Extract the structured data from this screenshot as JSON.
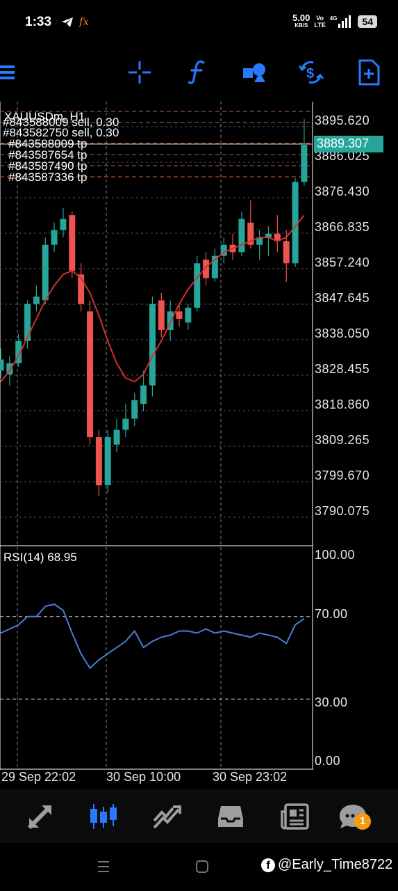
{
  "status_bar": {
    "time": "1:33",
    "speed_value": "5.00",
    "speed_unit": "KB/S",
    "volte_top": "Vo",
    "volte_bottom": "LTE",
    "network": "4G",
    "battery": "54"
  },
  "toolbar": {
    "items": [
      "menu",
      "crosshair",
      "indicators",
      "objects",
      "quick-trade",
      "new-order"
    ]
  },
  "chart": {
    "title": "XAUUSDm, H1",
    "current_price": "3889.307",
    "orders": [
      "#843588009 sell, 0.30",
      "#843582750 sell, 0.30",
      "#843588009 tp",
      "#843587654 tp",
      "#843587490 tp",
      "#843587336 tp"
    ],
    "price_labels": [
      "3895.620",
      "3886.025",
      "3876.430",
      "3866.835",
      "3857.240",
      "3847.645",
      "3838.050",
      "3828.455",
      "3818.860",
      "3809.265",
      "3799.670",
      "3790.075"
    ],
    "rsi": {
      "label": "RSI(14) 68.95",
      "levels": [
        "100.00",
        "70.00",
        "30.00",
        "0.00"
      ]
    },
    "time_labels": [
      "29 Sep 22:02",
      "30 Sep 10:00",
      "30 Sep 23:02"
    ]
  },
  "chart_data": {
    "type": "candlestick",
    "symbol": "XAUUSDm",
    "timeframe": "H1",
    "ylim": [
      3785,
      3900
    ],
    "candles": [
      {
        "o": 3828,
        "h": 3834,
        "l": 3826,
        "c": 3831
      },
      {
        "o": 3827,
        "h": 3832,
        "l": 3824,
        "c": 3830
      },
      {
        "o": 3830,
        "h": 3838,
        "l": 3829,
        "c": 3836
      },
      {
        "o": 3836,
        "h": 3847,
        "l": 3834,
        "c": 3846
      },
      {
        "o": 3846,
        "h": 3851,
        "l": 3844,
        "c": 3848
      },
      {
        "o": 3847,
        "h": 3864,
        "l": 3846,
        "c": 3862
      },
      {
        "o": 3862,
        "h": 3868,
        "l": 3860,
        "c": 3866
      },
      {
        "o": 3866,
        "h": 3872,
        "l": 3864,
        "c": 3869
      },
      {
        "o": 3870,
        "h": 3871,
        "l": 3853,
        "c": 3855
      },
      {
        "o": 3854,
        "h": 3857,
        "l": 3844,
        "c": 3846
      },
      {
        "o": 3844,
        "h": 3847,
        "l": 3808,
        "c": 3810
      },
      {
        "o": 3810,
        "h": 3812,
        "l": 3794,
        "c": 3797
      },
      {
        "o": 3797,
        "h": 3812,
        "l": 3795,
        "c": 3810
      },
      {
        "o": 3808,
        "h": 3815,
        "l": 3806,
        "c": 3812
      },
      {
        "o": 3812,
        "h": 3819,
        "l": 3810,
        "c": 3815
      },
      {
        "o": 3815,
        "h": 3822,
        "l": 3813,
        "c": 3820
      },
      {
        "o": 3819,
        "h": 3828,
        "l": 3817,
        "c": 3824
      },
      {
        "o": 3824,
        "h": 3848,
        "l": 3821,
        "c": 3846
      },
      {
        "o": 3847,
        "h": 3849,
        "l": 3837,
        "c": 3839
      },
      {
        "o": 3839,
        "h": 3847,
        "l": 3836,
        "c": 3844
      },
      {
        "o": 3844,
        "h": 3846,
        "l": 3840,
        "c": 3842
      },
      {
        "o": 3841,
        "h": 3846,
        "l": 3839,
        "c": 3845
      },
      {
        "o": 3845,
        "h": 3859,
        "l": 3844,
        "c": 3857
      },
      {
        "o": 3858,
        "h": 3860,
        "l": 3851,
        "c": 3853
      },
      {
        "o": 3853,
        "h": 3861,
        "l": 3852,
        "c": 3859
      },
      {
        "o": 3859,
        "h": 3864,
        "l": 3857,
        "c": 3862
      },
      {
        "o": 3862,
        "h": 3865,
        "l": 3858,
        "c": 3860
      },
      {
        "o": 3860,
        "h": 3871,
        "l": 3859,
        "c": 3869
      },
      {
        "o": 3868,
        "h": 3874,
        "l": 3861,
        "c": 3862
      },
      {
        "o": 3862,
        "h": 3866,
        "l": 3858,
        "c": 3864
      },
      {
        "o": 3864,
        "h": 3867,
        "l": 3859,
        "c": 3865
      },
      {
        "o": 3865,
        "h": 3870,
        "l": 3860,
        "c": 3863
      },
      {
        "o": 3863,
        "h": 3866,
        "l": 3852,
        "c": 3857
      },
      {
        "o": 3857,
        "h": 3880,
        "l": 3856,
        "c": 3879
      },
      {
        "o": 3879,
        "h": 3896,
        "l": 3878,
        "c": 3889
      }
    ],
    "ma": [
      3825,
      3828,
      3832,
      3837,
      3842,
      3847,
      3851,
      3854,
      3855,
      3853,
      3849,
      3843,
      3836,
      3830,
      3826,
      3825,
      3827,
      3832,
      3836,
      3841,
      3846,
      3850,
      3853,
      3856,
      3858,
      3860,
      3861,
      3862,
      3863,
      3864,
      3864,
      3863,
      3864,
      3867,
      3870
    ],
    "rsi_values": [
      62,
      64,
      66,
      70,
      70,
      75,
      76,
      73,
      62,
      52,
      45,
      49,
      52,
      55,
      58,
      63,
      55,
      58,
      60,
      61,
      63,
      63,
      62,
      64,
      62,
      63,
      62,
      61,
      60,
      62,
      61,
      60,
      57,
      66,
      69
    ],
    "rsi_levels": [
      0,
      30,
      70,
      100
    ],
    "colors": {
      "bull": "#26a69a",
      "bear": "#ef5350",
      "ma": "#d32f2f",
      "rsi": "#4a7fd6",
      "accent": "#2979ff"
    }
  },
  "bottom_nav": {
    "items": [
      "trade",
      "chart",
      "history",
      "inbox",
      "news",
      "chat"
    ],
    "badge": "1"
  },
  "watermark": "@Early_Time8722"
}
